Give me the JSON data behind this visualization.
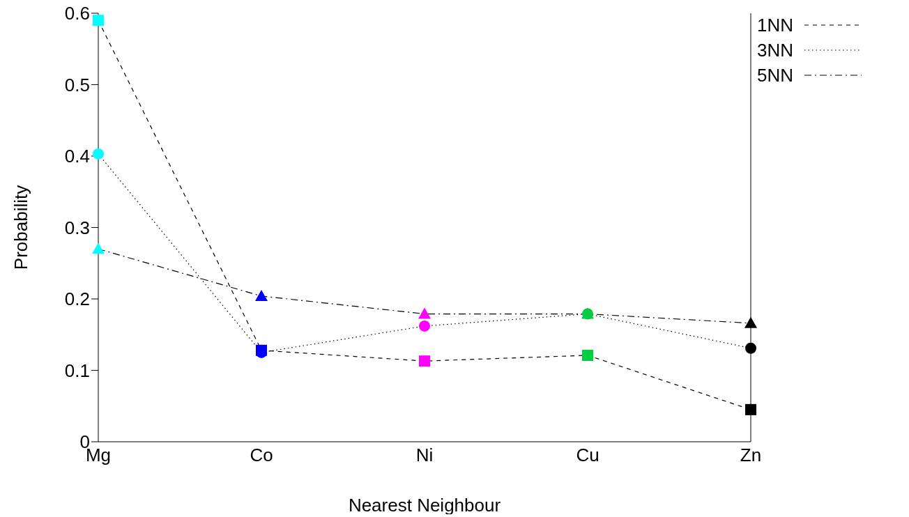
{
  "chart_data": {
    "type": "line",
    "xlabel": "Nearest Neighbour",
    "ylabel": "Probability",
    "categories": [
      "Mg",
      "Co",
      "Ni",
      "Cu",
      "Zn"
    ],
    "series": [
      {
        "name": "1NN",
        "color": "#000000",
        "line_style": "dashed",
        "marker": "square",
        "colors": [
          "#00ffff",
          "#0000ff",
          "#ff00ff",
          "#00cc44",
          "#000000"
        ],
        "values": [
          0.59,
          0.128,
          0.113,
          0.121,
          0.045
        ]
      },
      {
        "name": "3NN",
        "color": "#000000",
        "line_style": "dotted",
        "marker": "circle",
        "colors": [
          "#00ffff",
          "#0000ff",
          "#ff00ff",
          "#00cc44",
          "#000000"
        ],
        "values": [
          0.403,
          0.125,
          0.162,
          0.179,
          0.131
        ]
      },
      {
        "name": "5NN",
        "color": "#000000",
        "line_style": "dashdot",
        "marker": "triangle",
        "colors": [
          "#00ffff",
          "#0000ff",
          "#ff00ff",
          "#00cc44",
          "#000000"
        ],
        "values": [
          0.27,
          0.204,
          0.179,
          0.179,
          0.166
        ]
      }
    ],
    "ylim": [
      0,
      0.6
    ],
    "yticks": [
      0,
      0.1,
      0.2,
      0.3,
      0.4,
      0.5,
      0.6
    ],
    "grid": false,
    "legend": "top right"
  }
}
